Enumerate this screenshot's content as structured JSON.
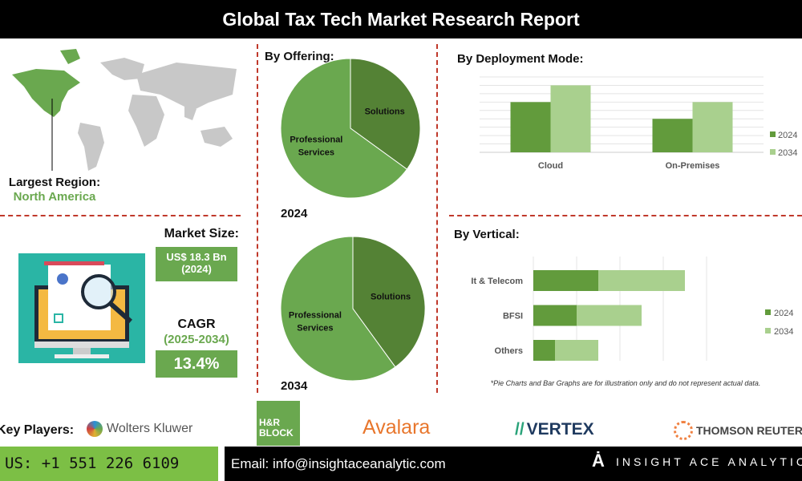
{
  "title": "Global Tax Tech Market Research Report",
  "region": {
    "label": "Largest Region:",
    "value": "North America"
  },
  "market_size": {
    "label": "Market Size:",
    "value": "US$ 18.3 Bn",
    "year": "(2024)"
  },
  "cagr": {
    "label": "CAGR",
    "period": "(2025-2034)",
    "value": "13.4%"
  },
  "colors": {
    "dark_green": "#629b3c",
    "light_green": "#a9d08e",
    "pie_main": "#6aa84f",
    "pie_slice": "#548235",
    "divider": "#c0392b"
  },
  "chart_data": [
    {
      "type": "pie",
      "title": "By Offering:",
      "caption": "2024",
      "slices": [
        {
          "label": "Solutions",
          "value": 35
        },
        {
          "label": "Professional Services",
          "value": 65
        }
      ]
    },
    {
      "type": "pie",
      "caption": "2034",
      "slices": [
        {
          "label": "Solutions",
          "value": 40
        },
        {
          "label": "Professional Services",
          "value": 60
        }
      ]
    },
    {
      "type": "bar",
      "title": "By Deployment Mode:",
      "categories": [
        "Cloud",
        "On-Premises"
      ],
      "series": [
        {
          "name": "2024",
          "values": [
            6,
            4
          ]
        },
        {
          "name": "2034",
          "values": [
            8,
            6
          ]
        }
      ],
      "ylim": [
        0,
        9
      ],
      "grid": true,
      "legend": "right"
    },
    {
      "type": "bar",
      "orientation": "horizontal-stacked",
      "title": "By Vertical:",
      "categories": [
        "It & Telecom",
        "BFSI",
        "Others"
      ],
      "series": [
        {
          "name": "2024",
          "values": [
            1.5,
            1,
            0.5
          ]
        },
        {
          "name": "2034",
          "values": [
            2,
            1.5,
            1
          ]
        }
      ],
      "xlim": [
        0,
        4
      ],
      "grid": true,
      "legend": "right"
    }
  ],
  "footnote": "*Pie Charts and Bar Graphs are for illustration only and do not represent actual data.",
  "key_players": {
    "label": "Key Players:",
    "items": [
      "Wolters Kluwer",
      "H&R BLOCK",
      "Avalara",
      "VERTEX",
      "THOMSON REUTERS"
    ]
  },
  "footer": {
    "phone": "US: +1 551 226 6109",
    "email": "Email: info@insightaceanalytic.com",
    "brand": "INSIGHT ACE ANALYTIC"
  }
}
